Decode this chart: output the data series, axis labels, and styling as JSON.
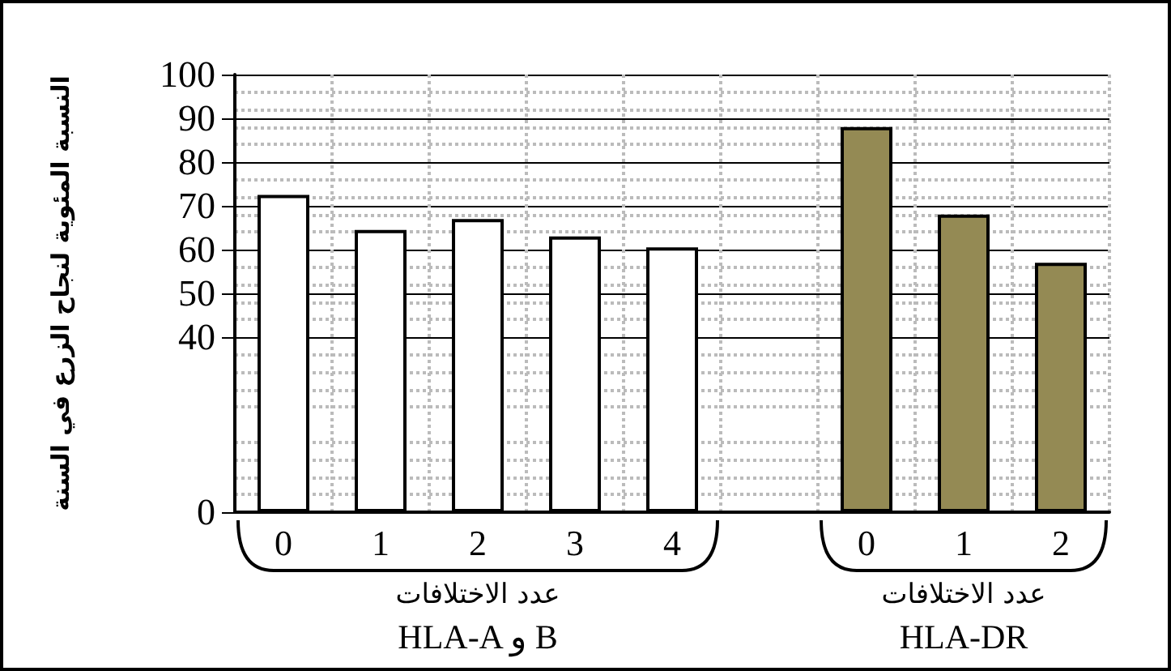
{
  "chart_data": {
    "type": "bar",
    "ylabel": "النسبة المئوية لنجاح الزرع في السنة",
    "categories": [
      "0",
      "1",
      "2",
      "3",
      "4",
      null,
      "0",
      "1",
      "2"
    ],
    "values": [
      72.5,
      64.5,
      67,
      63,
      60.5,
      null,
      88,
      68,
      57
    ],
    "colors": [
      "#ffffff",
      "#ffffff",
      "#ffffff",
      "#ffffff",
      "#ffffff",
      null,
      "#948a54",
      "#948a54",
      "#948a54"
    ],
    "ylim": [
      0,
      100
    ],
    "yticks": [
      0,
      40,
      50,
      60,
      70,
      80,
      90,
      100
    ],
    "grid": true,
    "annotations": [
      "عدد الاختلافات\nHLA-A و B",
      "عدد الاختلافات\nHLA-DR"
    ]
  }
}
